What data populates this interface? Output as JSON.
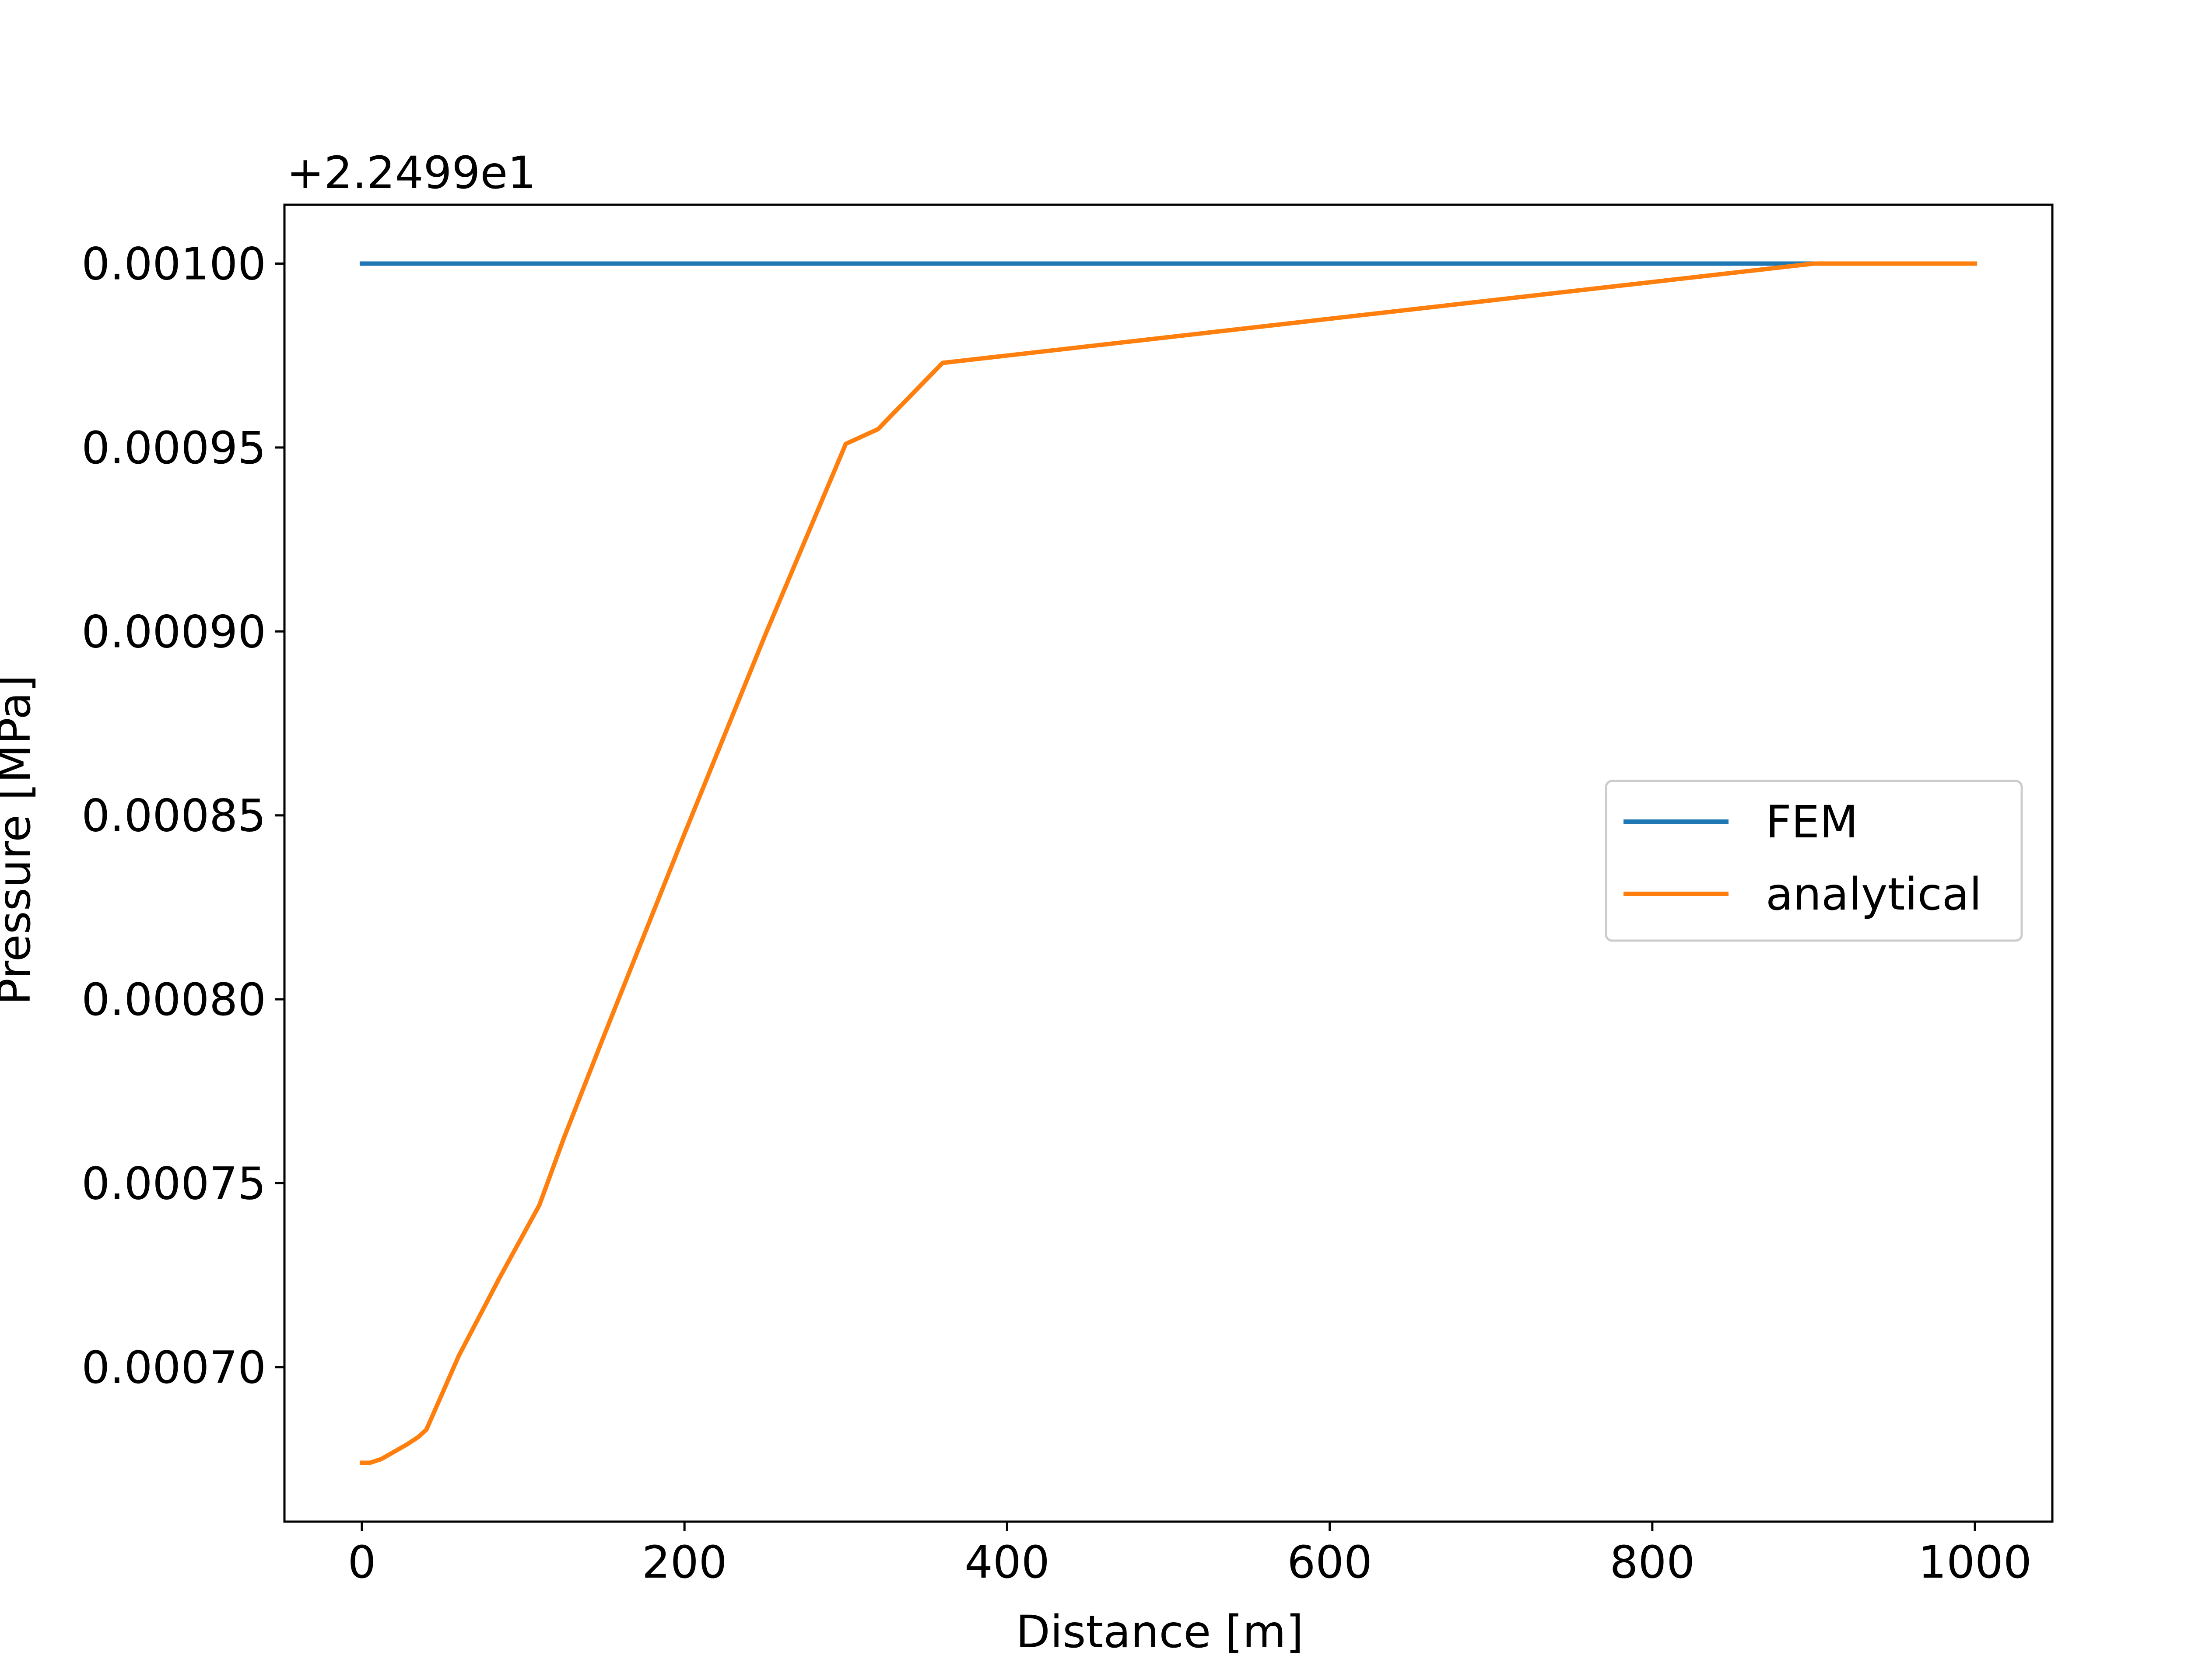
{
  "chart_data": {
    "type": "line",
    "title": "",
    "xlabel": "Distance [m]",
    "ylabel": "Pressure [MPa]",
    "y_offset_label": "+2.2499e1",
    "y_offset": 22.499,
    "xlim": [
      -48,
      1048
    ],
    "ylim": [
      0.000658,
      0.001016
    ],
    "x_ticks": [
      0,
      200,
      400,
      600,
      800,
      1000
    ],
    "x_tick_labels": [
      "0",
      "200",
      "400",
      "600",
      "800",
      "1000"
    ],
    "y_ticks": [
      0.0007,
      0.00075,
      0.0008,
      0.00085,
      0.0009,
      0.00095,
      0.001
    ],
    "y_tick_labels": [
      "0.00070",
      "0.00075",
      "0.00080",
      "0.00085",
      "0.00090",
      "0.00095",
      "0.00100"
    ],
    "grid": false,
    "legend_position": "center-right",
    "series": [
      {
        "name": "FEM",
        "color": "#1f77b4",
        "x": [
          0,
          100,
          200,
          300,
          400,
          500,
          600,
          700,
          800,
          900,
          1000
        ],
        "y": [
          0.001,
          0.001,
          0.001,
          0.001,
          0.001,
          0.001,
          0.001,
          0.001,
          0.001,
          0.001,
          0.001
        ]
      },
      {
        "name": "analytical",
        "color": "#ff7f0e",
        "x": [
          0,
          5,
          12,
          20,
          28,
          35,
          40,
          60,
          85,
          110,
          125,
          150,
          200,
          250,
          300,
          320,
          340,
          360,
          400,
          500,
          600,
          700,
          800,
          900,
          1000
        ],
        "y": [
          0.000674,
          0.000674,
          0.000675,
          0.000677,
          0.000679,
          0.000681,
          0.000683,
          0.000703,
          0.000724,
          0.000744,
          0.000762,
          0.00079,
          0.000845,
          0.000899,
          0.000951,
          0.000955,
          0.000964,
          0.000973,
          0.000975,
          0.00098,
          0.000985,
          0.00099,
          0.000995,
          0.001,
          0.001
        ]
      }
    ]
  }
}
